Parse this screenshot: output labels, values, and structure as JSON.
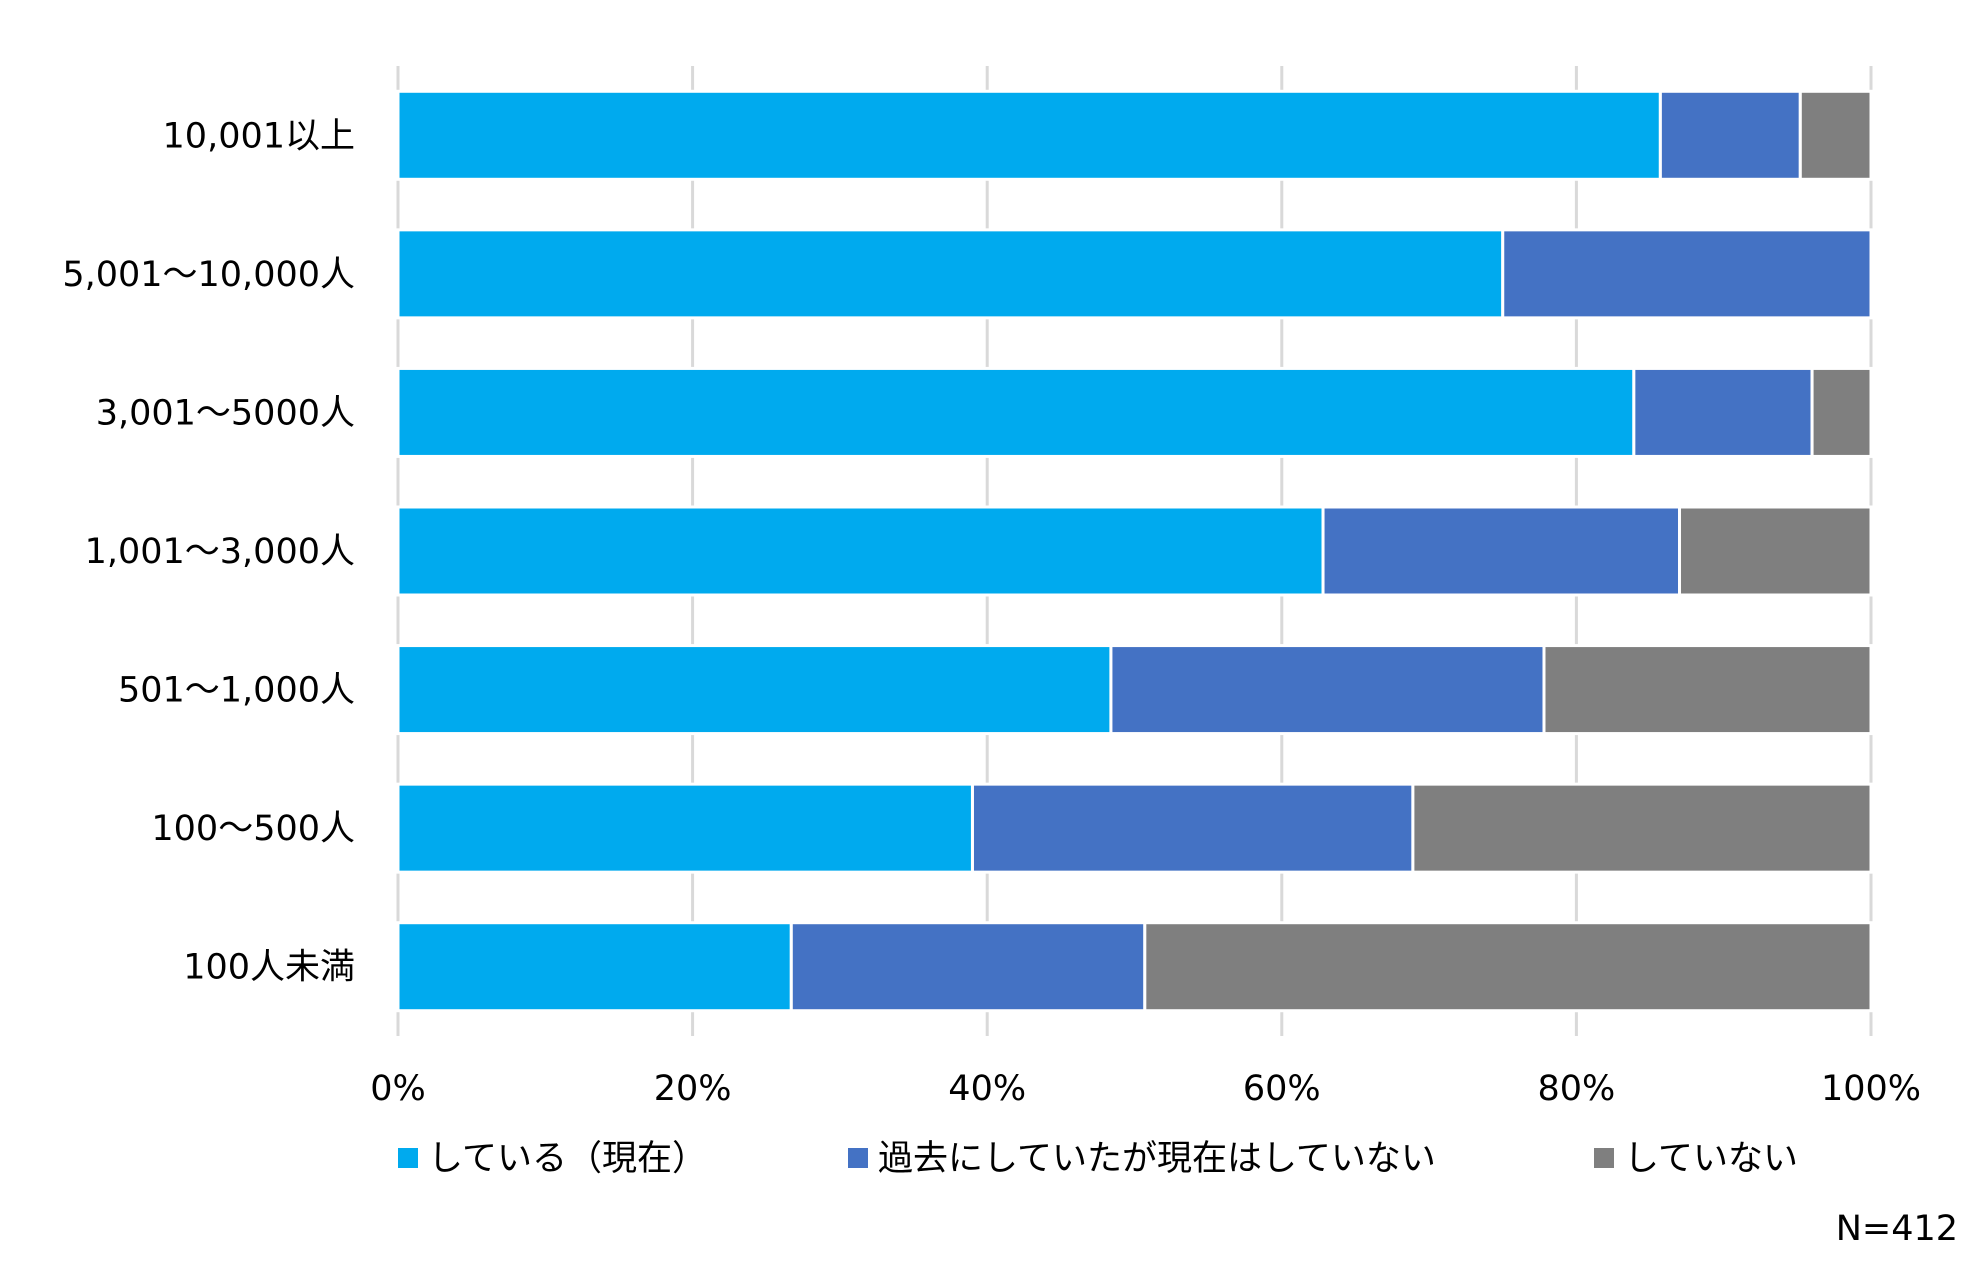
{
  "chart_data": {
    "type": "bar",
    "orientation": "horizontal",
    "stacked": "percent",
    "categories": [
      "10,001以上",
      "5,001～10,000人",
      "3,001～5000人",
      "1,001～3,000人",
      "501～1,000人",
      "100～500人",
      "100人未満"
    ],
    "series": [
      {
        "name": "している（現在）",
        "color": "#00AAEE",
        "values": [
          85.7,
          75.0,
          83.9,
          62.8,
          48.4,
          39.0,
          26.7
        ]
      },
      {
        "name": "過去にしていたが現在はしていない",
        "color": "#4472C4",
        "values": [
          9.5,
          25.0,
          12.1,
          24.2,
          29.4,
          29.9,
          24.0
        ]
      },
      {
        "name": "していない",
        "color": "#7F7F7F",
        "values": [
          4.8,
          0.0,
          4.0,
          13.0,
          22.2,
          31.1,
          49.3
        ]
      }
    ],
    "xlim": [
      0,
      100
    ],
    "x_ticks": [
      "0%",
      "20%",
      "40%",
      "60%",
      "80%",
      "100%"
    ],
    "grid": true,
    "legend": "bottom",
    "note": "N=412"
  }
}
